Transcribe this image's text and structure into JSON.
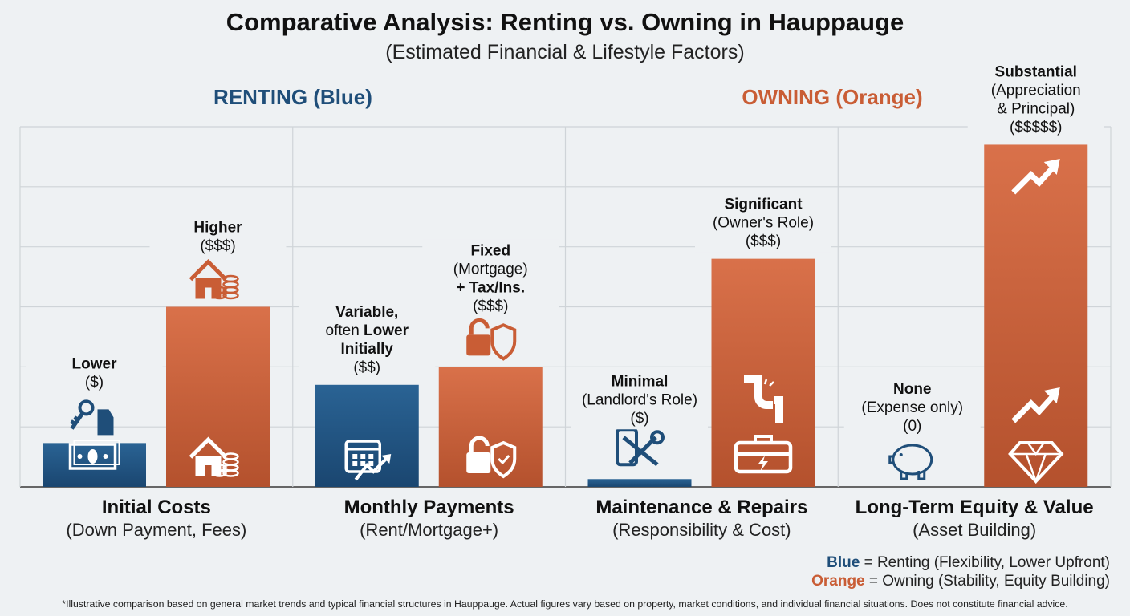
{
  "title": "Comparative Analysis: Renting vs. Owning in Hauppauge",
  "subtitle": "(Estimated Financial & Lifestyle Factors)",
  "group_labels": {
    "renting": "RENTING (Blue)",
    "owning": "OWNING (Orange)"
  },
  "colors": {
    "renting": "#1f4e79",
    "owning": "#c95d35",
    "renting_light": "#2a6394",
    "owning_light": "#d9714a",
    "background": "#eef1f3",
    "grid": "#cfd4d8"
  },
  "chart_data": {
    "type": "bar",
    "title": "Comparative Analysis: Renting vs. Owning in Hauppauge",
    "subtitle": "(Estimated Financial & Lifestyle Factors)",
    "categories": [
      {
        "title": "Initial Costs",
        "subtitle": "(Down Payment, Fees)"
      },
      {
        "title": "Monthly Payments",
        "subtitle": "(Rent/Mortgage+)"
      },
      {
        "title": "Maintenance & Repairs",
        "subtitle": "(Responsibility & Cost)"
      },
      {
        "title": "Long-Term Equity & Value",
        "subtitle": "(Asset Building)"
      }
    ],
    "ylim": [
      0,
      6
    ],
    "grid": true,
    "axis_tick_labels": false,
    "series": [
      {
        "key": "renting",
        "values": [
          0.73,
          1.7,
          0.13,
          0
        ],
        "annotations": [
          [
            [
              {
                "text": "Lower",
                "bold": true
              }
            ],
            [
              {
                "text": "($)",
                "bold": false
              }
            ]
          ],
          [
            [
              {
                "text": "Variable,",
                "bold": true
              }
            ],
            [
              {
                "text": "often ",
                "bold": false
              },
              {
                "text": "Lower",
                "bold": true
              }
            ],
            [
              {
                "text": "Initially",
                "bold": true
              }
            ],
            [
              {
                "text": "($$)",
                "bold": false
              }
            ]
          ],
          [
            [
              {
                "text": "Minimal",
                "bold": true
              }
            ],
            [
              {
                "text": "(Landlord's Role)",
                "bold": false
              }
            ],
            [
              {
                "text": "($)",
                "bold": false
              }
            ]
          ],
          [
            [
              {
                "text": "None",
                "bold": true
              }
            ],
            [
              {
                "text": "(Expense only)",
                "bold": false
              }
            ],
            [
              {
                "text": "(0)",
                "bold": false
              }
            ]
          ]
        ],
        "icons_above": [
          "keys-price-tag-icon",
          null,
          "phone-wrench-icon",
          "piggy-bank-icon"
        ],
        "icons_inside": [
          [
            "cash-icon"
          ],
          [
            "calendar-trend-icon"
          ],
          [],
          []
        ]
      },
      {
        "key": "owning",
        "values": [
          3.0,
          2.0,
          3.8,
          5.7
        ],
        "annotations": [
          [
            [
              {
                "text": "Higher",
                "bold": true
              }
            ],
            [
              {
                "text": "($$$)",
                "bold": false
              }
            ]
          ],
          [
            [
              {
                "text": "Fixed",
                "bold": true
              }
            ],
            [
              {
                "text": "(Mortgage)",
                "bold": false
              }
            ],
            [
              {
                "text": "+ Tax/Ins.",
                "bold": true
              }
            ],
            [
              {
                "text": "($$$)",
                "bold": false
              }
            ]
          ],
          [
            [
              {
                "text": "Significant",
                "bold": true
              }
            ],
            [
              {
                "text": "(Owner's Role)",
                "bold": false
              }
            ],
            [
              {
                "text": "($$$)",
                "bold": false
              }
            ]
          ],
          [
            [
              {
                "text": "Substantial",
                "bold": true
              }
            ],
            [
              {
                "text": "(Appreciation",
                "bold": false
              }
            ],
            [
              {
                "text": "& Principal)",
                "bold": false
              }
            ],
            [
              {
                "text": "($$$$$)",
                "bold": false
              }
            ]
          ]
        ],
        "icons_above": [
          "house-coins-icon",
          "lock-shield-icon",
          null,
          null
        ],
        "icons_inside": [
          [
            "house-coins-icon"
          ],
          [
            "lock-shield-check-icon"
          ],
          [
            "leaking-pipe-icon",
            "toolbox-icon"
          ],
          [
            "trend-arrow-icon",
            "trend-arrow-icon",
            "diamond-icon"
          ]
        ]
      }
    ]
  },
  "legend": {
    "renting_key": "Blue",
    "renting_text": " = Renting (Flexibility, Lower Upfront)",
    "owning_key": "Orange",
    "owning_text": " = Owning (Stability, Equity Building)",
    "placement": "bottom-right"
  },
  "footnote": "*Illustrative comparison based on general market trends and typical financial structures in Hauppauge. Actual figures vary based on property, market conditions, and individual financial situations. Does not constitute financial advice."
}
